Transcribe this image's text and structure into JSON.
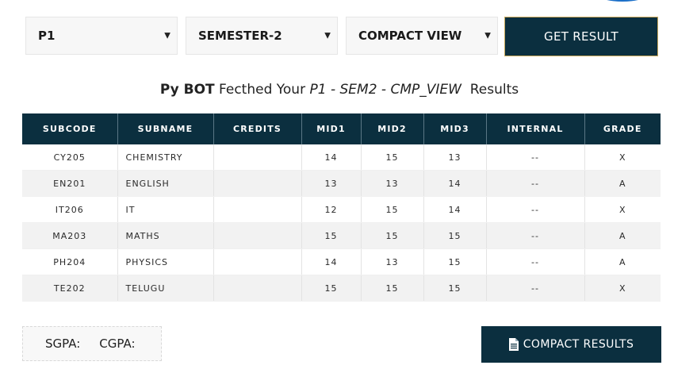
{
  "controls": {
    "year_select": "P1",
    "semester_select": "SEMESTER-2",
    "view_select": "COMPACT VIEW",
    "get_result_label": "GET RESULT"
  },
  "heading": {
    "bot": "Py BOT",
    "fetched": "Fecthed Your",
    "query": "P1 - SEM2 - CMP_VIEW",
    "results": "Results"
  },
  "table": {
    "headers": [
      "SUBCODE",
      "SUBNAME",
      "CREDITS",
      "MID1",
      "MID2",
      "MID3",
      "INTERNAL",
      "GRADE"
    ],
    "rows": [
      {
        "subcode": "CY205",
        "subname": "CHEMISTRY",
        "credits": "",
        "mid1": "14",
        "mid2": "15",
        "mid3": "13",
        "internal": "--",
        "grade": "X"
      },
      {
        "subcode": "EN201",
        "subname": "ENGLISH",
        "credits": "",
        "mid1": "13",
        "mid2": "13",
        "mid3": "14",
        "internal": "--",
        "grade": "A"
      },
      {
        "subcode": "IT206",
        "subname": "IT",
        "credits": "",
        "mid1": "12",
        "mid2": "15",
        "mid3": "14",
        "internal": "--",
        "grade": "X"
      },
      {
        "subcode": "MA203",
        "subname": "MATHS",
        "credits": "",
        "mid1": "15",
        "mid2": "15",
        "mid3": "15",
        "internal": "--",
        "grade": "A"
      },
      {
        "subcode": "PH204",
        "subname": "PHYSICS",
        "credits": "",
        "mid1": "14",
        "mid2": "13",
        "mid3": "15",
        "internal": "--",
        "grade": "A"
      },
      {
        "subcode": "TE202",
        "subname": "TELUGU",
        "credits": "",
        "mid1": "15",
        "mid2": "15",
        "mid3": "15",
        "internal": "--",
        "grade": "X"
      }
    ]
  },
  "summary": {
    "sgpa_label": "SGPA:",
    "cgpa_label": "CGPA:"
  },
  "compact_button": {
    "label": "COMPACT RESULTS",
    "icon": "document-icon"
  },
  "colors": {
    "header_bg": "#0b2f3f",
    "button_border": "#c9a85a"
  }
}
